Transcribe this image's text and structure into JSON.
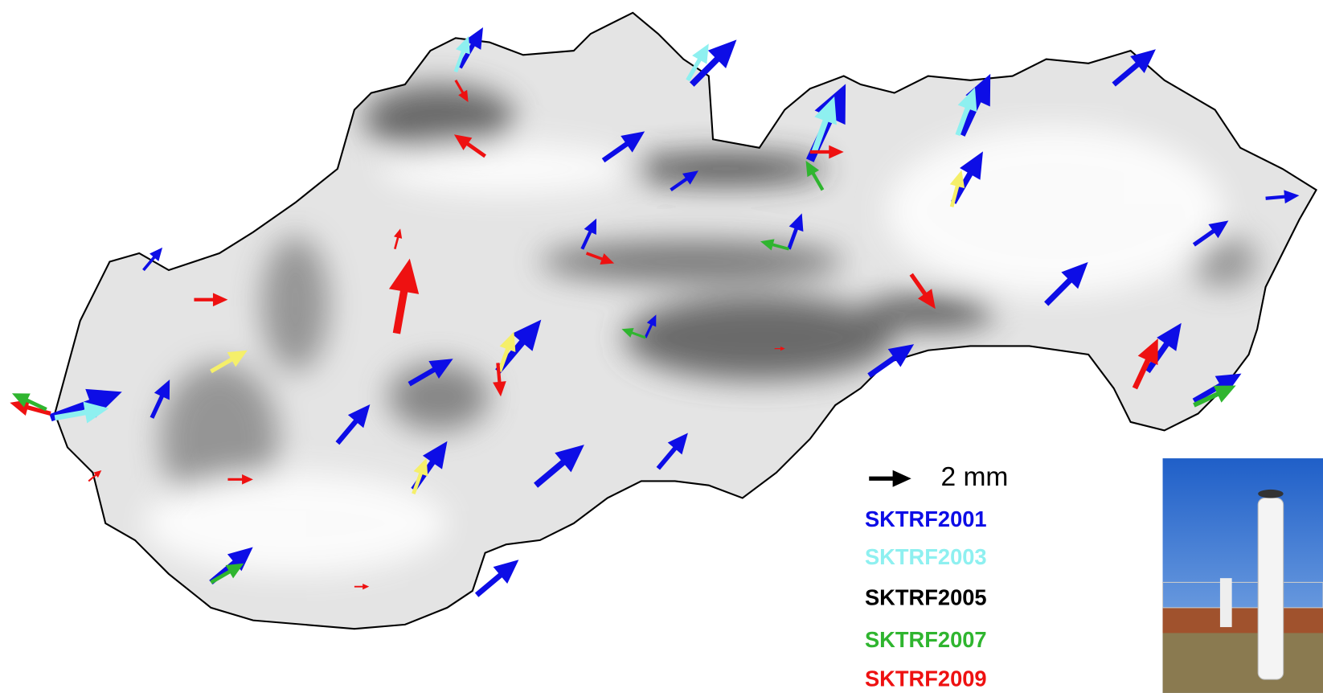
{
  "legend": {
    "scale_label": "2 mm",
    "items": [
      {
        "name": "SKTRF2001",
        "color": "#0d0de6"
      },
      {
        "name": "SKTRF2003",
        "color": "#8ef0f0"
      },
      {
        "name": "SKTRF2005",
        "color": "#000000"
      },
      {
        "name": "SKTRF2007",
        "color": "#2fb52f"
      },
      {
        "name": "SKTRF2009",
        "color": "#ee1111"
      }
    ]
  }
}
